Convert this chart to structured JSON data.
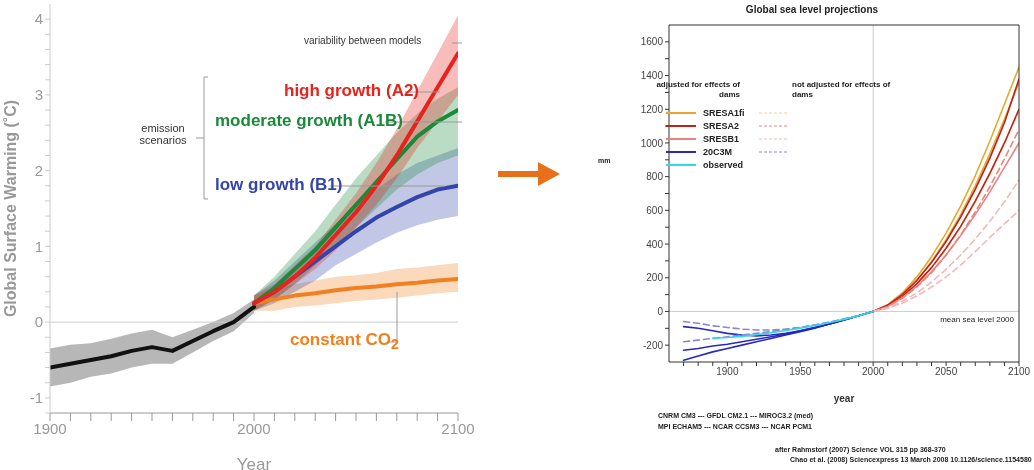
{
  "chart_data": [
    {
      "type": "line",
      "xlabel": "Year",
      "ylabel": "Global Surface Warming (˚C)",
      "xlim": [
        1900,
        2100
      ],
      "xticks": [
        1900,
        {
          "value": 1910,
          "label": null
        },
        {
          "value": 1920,
          "label": null
        },
        {
          "value": 1930,
          "label": null
        },
        {
          "value": 1940,
          "label": null
        },
        {
          "value": 1950,
          "label": null
        },
        {
          "value": 1960,
          "label": null
        },
        {
          "value": 1970,
          "label": null
        },
        {
          "value": 1980,
          "label": null
        },
        {
          "value": 1990,
          "label": null
        },
        2000,
        {
          "value": 2010,
          "label": null
        },
        {
          "value": 2020,
          "label": null
        },
        {
          "value": 2030,
          "label": null
        },
        {
          "value": 2040,
          "label": null
        },
        {
          "value": 2050,
          "label": null
        },
        {
          "value": 2060,
          "label": null
        },
        {
          "value": 2070,
          "label": null
        },
        {
          "value": 2080,
          "label": null
        },
        {
          "value": 2090,
          "label": null
        },
        2100
      ],
      "ylim": [
        -1.2,
        4.2
      ],
      "yticks": [
        {
          "value": -1.2,
          "label": null
        },
        -1,
        {
          "value": -0.8,
          "label": null
        },
        {
          "value": -0.6,
          "label": null
        },
        {
          "value": -0.4,
          "label": null
        },
        {
          "value": -0.2,
          "label": null
        },
        0,
        {
          "value": 0.2,
          "label": null
        },
        {
          "value": 0.4,
          "label": null
        },
        {
          "value": 0.6,
          "label": null
        },
        {
          "value": 0.8,
          "label": null
        },
        1,
        {
          "value": 1.2,
          "label": null
        },
        {
          "value": 1.4,
          "label": null
        },
        {
          "value": 1.6,
          "label": null
        },
        {
          "value": 1.8,
          "label": null
        },
        2,
        {
          "value": 2.2,
          "label": null
        },
        {
          "value": 2.4,
          "label": null
        },
        {
          "value": 2.6,
          "label": null
        },
        {
          "value": 2.8,
          "label": null
        },
        3,
        {
          "value": 3.2,
          "label": null
        },
        {
          "value": 3.4,
          "label": null
        },
        {
          "value": 3.6,
          "label": null
        },
        {
          "value": 3.8,
          "label": null
        },
        4
      ],
      "ref_lines": [
        {
          "axis": "y",
          "value": 0,
          "color": "#cccccc"
        }
      ],
      "annotations": [
        "variability between models",
        "emission scenarios"
      ],
      "series": [
        {
          "color": "#111111",
          "x": [
            1900,
            1910,
            1920,
            1930,
            1940,
            1950,
            1960,
            1970,
            1980,
            1990,
            2000
          ],
          "values": [
            -0.6,
            -0.55,
            -0.5,
            -0.45,
            -0.38,
            -0.33,
            -0.38,
            -0.25,
            -0.12,
            0.0,
            0.2
          ],
          "lower": [
            -0.85,
            -0.8,
            -0.72,
            -0.68,
            -0.6,
            -0.55,
            -0.55,
            -0.4,
            -0.25,
            -0.12,
            0.12
          ],
          "upper": [
            -0.35,
            -0.3,
            -0.28,
            -0.22,
            -0.15,
            -0.1,
            -0.2,
            -0.1,
            0.0,
            0.12,
            0.3
          ]
        },
        {
          "name": "constant CO$_{2}$",
          "color": "#f08020",
          "x": [
            2000,
            2010,
            2020,
            2030,
            2040,
            2050,
            2060,
            2070,
            2080,
            2090,
            2100
          ],
          "values": [
            0.25,
            0.3,
            0.35,
            0.38,
            0.42,
            0.45,
            0.47,
            0.5,
            0.52,
            0.55,
            0.57
          ],
          "lower": [
            0.15,
            0.15,
            0.2,
            0.22,
            0.25,
            0.28,
            0.3,
            0.32,
            0.35,
            0.38,
            0.4
          ],
          "upper": [
            0.35,
            0.45,
            0.5,
            0.55,
            0.6,
            0.62,
            0.65,
            0.7,
            0.72,
            0.75,
            0.78
          ]
        },
        {
          "name": "low growth (B1)",
          "color": "#3344aa",
          "x": [
            2000,
            2010,
            2020,
            2030,
            2040,
            2050,
            2060,
            2070,
            2080,
            2090,
            2100
          ],
          "values": [
            0.25,
            0.4,
            0.6,
            0.8,
            1.0,
            1.2,
            1.38,
            1.52,
            1.65,
            1.75,
            1.8
          ],
          "lower": [
            0.15,
            0.25,
            0.4,
            0.55,
            0.75,
            0.9,
            1.05,
            1.18,
            1.28,
            1.35,
            1.4
          ],
          "upper": [
            0.35,
            0.55,
            0.8,
            1.05,
            1.3,
            1.55,
            1.75,
            1.95,
            2.1,
            2.2,
            2.3
          ]
        },
        {
          "name": "moderate growth (A1B)",
          "color": "#1a8a3a",
          "x": [
            2000,
            2010,
            2020,
            2030,
            2040,
            2050,
            2060,
            2070,
            2080,
            2090,
            2100
          ],
          "values": [
            0.25,
            0.45,
            0.7,
            0.95,
            1.25,
            1.55,
            1.85,
            2.15,
            2.45,
            2.65,
            2.8
          ],
          "lower": [
            0.15,
            0.3,
            0.5,
            0.75,
            1.0,
            1.25,
            1.5,
            1.75,
            1.95,
            2.1,
            2.2
          ],
          "upper": [
            0.35,
            0.6,
            0.9,
            1.2,
            1.55,
            1.9,
            2.2,
            2.5,
            2.75,
            2.95,
            3.1
          ]
        },
        {
          "name": "high growth (A2)",
          "color": "#e8221c",
          "x": [
            2000,
            2010,
            2020,
            2030,
            2040,
            2050,
            2060,
            2070,
            2080,
            2090,
            2100
          ],
          "values": [
            0.25,
            0.4,
            0.6,
            0.85,
            1.15,
            1.45,
            1.8,
            2.2,
            2.65,
            3.1,
            3.55
          ],
          "lower": [
            0.15,
            0.3,
            0.5,
            0.7,
            0.95,
            1.25,
            1.55,
            1.9,
            2.3,
            2.65,
            3.0
          ],
          "upper": [
            0.35,
            0.5,
            0.75,
            1.0,
            1.35,
            1.7,
            2.1,
            2.55,
            3.05,
            3.55,
            4.05
          ]
        }
      ]
    },
    {
      "type": "line",
      "title": "Global sea level projections",
      "xlabel": "year",
      "ylabel": "mm",
      "xlim": [
        1860,
        2100
      ],
      "xticks": [
        {
          "value": 1870,
          "label": null
        },
        {
          "value": 1880,
          "label": null
        },
        {
          "value": 1890,
          "label": null
        },
        1900,
        {
          "value": 1910,
          "label": null
        },
        {
          "value": 1920,
          "label": null
        },
        {
          "value": 1930,
          "label": null
        },
        {
          "value": 1940,
          "label": null
        },
        1950,
        {
          "value": 1960,
          "label": null
        },
        {
          "value": 1970,
          "label": null
        },
        {
          "value": 1980,
          "label": null
        },
        {
          "value": 1990,
          "label": null
        },
        2000,
        {
          "value": 2010,
          "label": null
        },
        {
          "value": 2020,
          "label": null
        },
        {
          "value": 2030,
          "label": null
        },
        {
          "value": 2040,
          "label": null
        },
        2050,
        {
          "value": 2060,
          "label": null
        },
        {
          "value": 2070,
          "label": null
        },
        {
          "value": 2080,
          "label": null
        },
        {
          "value": 2090,
          "label": null
        },
        2100
      ],
      "ylim": [
        -300,
        1700
      ],
      "yticks": [
        -200,
        {
          "value": -100,
          "label": null
        },
        0,
        {
          "value": 100,
          "label": null
        },
        200,
        {
          "value": 300,
          "label": null
        },
        400,
        {
          "value": 500,
          "label": null
        },
        600,
        {
          "value": 700,
          "label": null
        },
        800,
        {
          "value": 900,
          "label": null
        },
        1000,
        {
          "value": 1100,
          "label": null
        },
        1200,
        {
          "value": 1300,
          "label": null
        },
        1400,
        {
          "value": 1500,
          "label": null
        },
        1600
      ],
      "ref_lines": [
        {
          "axis": "y",
          "value": 0,
          "label": "mean sea level 2000",
          "color": "#cccccc"
        },
        {
          "axis": "x",
          "value": 2000,
          "color": "#cccccc"
        }
      ],
      "legend": "top left",
      "annotations": [
        "adjusted for effects of dams",
        "not adjusted for effects of dams",
        "CNRM CM3 --- GFDL CM2.1 --- MIROC3.2 (med)",
        "MPI ECHAM5 --- NCAR CCSM3 --- NCAR PCM1",
        "after Rahmstorf (2007) Science VOL 315 pp 368-370",
        "Chao et al. (2008) Sciencexpress 13 March 2008 10.1126/science.1154580"
      ],
      "series": [
        {
          "name": "SRESA1fi",
          "color": "#e8a830",
          "x": [
            2000,
            2010,
            2020,
            2030,
            2040,
            2050,
            2060,
            2070,
            2080,
            2090,
            2100
          ],
          "values": [
            0,
            40,
            110,
            205,
            325,
            465,
            625,
            805,
            1010,
            1230,
            1450
          ]
        },
        {
          "color": "#e8a830",
          "x": [
            2000,
            2010,
            2020,
            2030,
            2040,
            2050,
            2060,
            2070,
            2080,
            2090,
            2100
          ],
          "values": [
            0,
            35,
            100,
            185,
            295,
            425,
            575,
            745,
            935,
            1140,
            1360
          ]
        },
        {
          "color": "#f0d890",
          "line_style": "dashed",
          "x": [
            2000,
            2010,
            2020,
            2030,
            2040,
            2050,
            2060,
            2070,
            2080,
            2090,
            2100
          ],
          "values": [
            0,
            30,
            85,
            160,
            255,
            370,
            500,
            650,
            815,
            995,
            1190
          ]
        },
        {
          "name": "SRESA2",
          "color": "#c0201a",
          "x": [
            2000,
            2010,
            2020,
            2030,
            2040,
            2050,
            2060,
            2070,
            2080,
            2090,
            2100
          ],
          "values": [
            0,
            38,
            100,
            185,
            290,
            415,
            560,
            725,
            910,
            1120,
            1380
          ]
        },
        {
          "color": "#c0201a",
          "x": [
            2000,
            2010,
            2020,
            2030,
            2040,
            2050,
            2060,
            2070,
            2080,
            2090,
            2100
          ],
          "values": [
            0,
            32,
            88,
            165,
            260,
            375,
            505,
            655,
            820,
            1000,
            1200
          ]
        },
        {
          "color": "#e08880",
          "line_style": "dashed",
          "x": [
            2000,
            2010,
            2020,
            2030,
            2040,
            2050,
            2060,
            2070,
            2080,
            2090,
            2100
          ],
          "values": [
            0,
            28,
            78,
            145,
            230,
            335,
            455,
            590,
            740,
            905,
            1080
          ]
        },
        {
          "name": "SRESB1",
          "color": "#f08080",
          "x": [
            2000,
            2010,
            2020,
            2030,
            2040,
            2050,
            2060,
            2070,
            2080,
            2090,
            2100
          ],
          "values": [
            0,
            30,
            82,
            150,
            235,
            335,
            450,
            575,
            710,
            855,
            1000
          ]
        },
        {
          "color": "#f4b8b8",
          "line_style": "dashed",
          "x": [
            2000,
            2010,
            2020,
            2030,
            2040,
            2050,
            2060,
            2070,
            2080,
            2090,
            2100
          ],
          "values": [
            0,
            22,
            60,
            110,
            175,
            250,
            335,
            430,
            535,
            650,
            780
          ]
        },
        {
          "color": "#f4b8b8",
          "line_style": "dashed",
          "x": [
            2000,
            2010,
            2020,
            2030,
            2040,
            2050,
            2060,
            2070,
            2080,
            2090,
            2100
          ],
          "values": [
            0,
            18,
            50,
            92,
            145,
            205,
            275,
            355,
            440,
            520,
            600
          ]
        },
        {
          "name": "20C3M",
          "color": "#2828c0",
          "x": [
            1870,
            1880,
            1890,
            1900,
            1910,
            1920,
            1930,
            1940,
            1950,
            1960,
            1970,
            1980,
            1990,
            2000
          ],
          "values": [
            -90,
            -100,
            -115,
            -130,
            -140,
            -145,
            -140,
            -130,
            -115,
            -95,
            -75,
            -50,
            -25,
            0
          ]
        },
        {
          "color": "#2828c0",
          "x": [
            1870,
            1880,
            1890,
            1900,
            1910,
            1920,
            1930,
            1940,
            1950,
            1960,
            1970,
            1980,
            1990,
            2000
          ],
          "values": [
            -290,
            -265,
            -240,
            -220,
            -200,
            -180,
            -160,
            -140,
            -120,
            -100,
            -75,
            -50,
            -25,
            0
          ]
        },
        {
          "color": "#2828c0",
          "x": [
            1870,
            1880,
            1890,
            1900,
            1910,
            1920,
            1930,
            1940,
            1950,
            1960,
            1970,
            1980,
            1990,
            2000
          ],
          "values": [
            -230,
            -220,
            -205,
            -195,
            -180,
            -165,
            -150,
            -135,
            -115,
            -95,
            -75,
            -50,
            -25,
            0
          ]
        },
        {
          "color": "#8888d0",
          "line_style": "dashed",
          "x": [
            1870,
            1880,
            1890,
            1900,
            1910,
            1920,
            1930,
            1940,
            1950,
            1960,
            1970,
            1980,
            1990,
            2000
          ],
          "values": [
            -60,
            -70,
            -85,
            -95,
            -105,
            -110,
            -110,
            -105,
            -95,
            -80,
            -65,
            -45,
            -25,
            0
          ]
        },
        {
          "color": "#8888d0",
          "line_style": "dashed",
          "x": [
            1870,
            1880,
            1890,
            1900,
            1910,
            1920,
            1930,
            1940,
            1950,
            1960,
            1970,
            1980,
            1990,
            2000
          ],
          "values": [
            -180,
            -170,
            -160,
            -150,
            -140,
            -130,
            -120,
            -108,
            -95,
            -80,
            -63,
            -45,
            -25,
            0
          ]
        },
        {
          "name": "observed",
          "color": "#30d8f0",
          "x": [
            1890,
            1900,
            1910,
            1920,
            1930,
            1940,
            1950,
            1960,
            1970,
            1980,
            1990,
            2000
          ],
          "values": [
            -160,
            -155,
            -148,
            -138,
            -126,
            -113,
            -99,
            -84,
            -66,
            -47,
            -25,
            0
          ]
        }
      ]
    }
  ]
}
